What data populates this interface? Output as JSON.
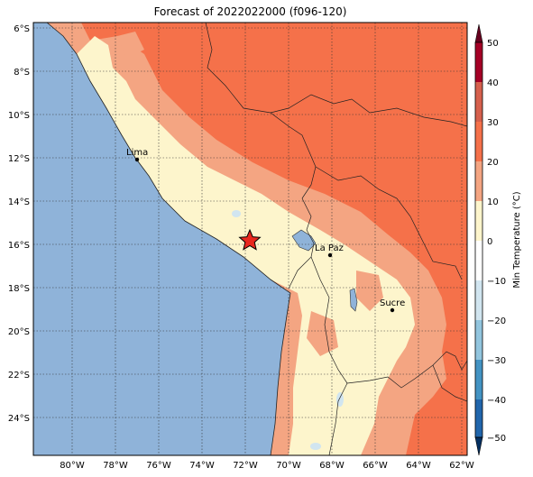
{
  "title": "Forecast of 2022022000 (f096-120)",
  "map": {
    "lat_ticks": [
      "6°S",
      "8°S",
      "10°S",
      "12°S",
      "14°S",
      "16°S",
      "18°S",
      "20°S",
      "22°S",
      "24°S"
    ],
    "lon_ticks": [
      "80°W",
      "78°W",
      "76°W",
      "74°W",
      "72°W",
      "70°W",
      "68°W",
      "66°W",
      "64°W",
      "62°W"
    ],
    "cities": [
      {
        "name": "Lima"
      },
      {
        "name": "La Paz"
      },
      {
        "name": "Sucre"
      }
    ],
    "marker": "star-icon"
  },
  "colorbar": {
    "label": "Min Temperature (°C)",
    "ticks": [
      "50",
      "40",
      "30",
      "20",
      "10",
      "0",
      "−10",
      "−20",
      "−30",
      "−40",
      "−50"
    ],
    "colors": [
      "#67001f",
      "#b2182b",
      "#d6604d",
      "#f4a582",
      "#fdf5cc",
      "#ffffff",
      "#d1e5f0",
      "#92c5de",
      "#4393c3",
      "#2166ac",
      "#053061"
    ]
  },
  "legend_colors": {
    "ocean": "#8fb3d9",
    "band_10_20": "#fdf5cc",
    "band_20_30": "#f4a582",
    "band_30_40": "#f5714a",
    "star": "#e8281e"
  }
}
